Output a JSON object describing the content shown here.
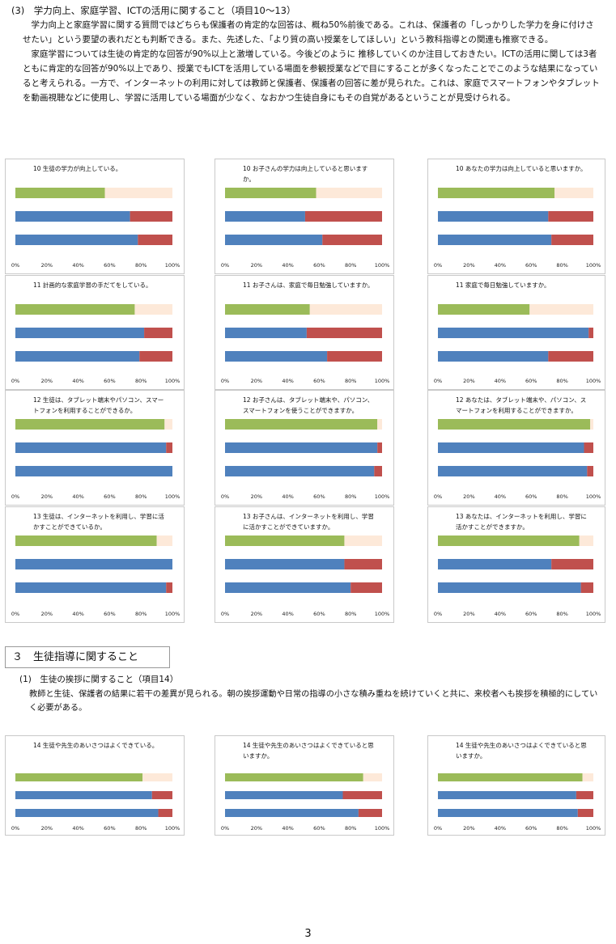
{
  "section3_title": "(3)　学力向上、家庭学習、ICTの活用に関すること（項目10～13）",
  "section3_para1": "学力向上と家庭学習に関する質問ではどちらも保護者の肯定的な回答は、概ね50%前後である。これは、保護者の「しっかりした学力を身に付けさせたい」という要望の表れだとも判断できる。また、先述した、「より質の高い授業をしてほしい」という教科指導との関連も推察できる。",
  "section3_para2": "家庭学習については生徒の肯定的な回答が90%以上と激増している。今後どのように 推移していくのか注目しておきたい。ICTの活用に関しては3者ともに肯定的な回答が90%以上であり、授業でもICTを活用している場面を参観授業などで目にすることが多くなったことでこのような結果になっていると考えられる。一方で、インターネットの利用に対しては教師と保護者、保護者の回答に差が見られた。これは、家庭でスマートフォンやタブレットを動画視聴などに使用し、学習に活用している場面が少なく、なおかつ生徒自身にもその自覚があるということが見受けられる。",
  "heading_box": "３　生徒指導に関すること",
  "sub_heading": "(1)　生徒の挨拶に関すること（項目14）",
  "section_para3": "教師と生徒、保護者の結果に若干の差異が見られる。朝の挨拶運動や日常の指導の小さな積み重ねを続けていくと共に、来校者へも挨拶を積極的にしていく必要がある。",
  "page_number": "3",
  "colors": {
    "green": "#9bbb59",
    "peach": "#fde9d9",
    "blue": "#4f81bd",
    "red": "#c0504d",
    "border": "#c9c9c9"
  },
  "ticks": [
    "0%",
    "20%",
    "40%",
    "60%",
    "80%",
    "100%"
  ],
  "chart_data": [
    {
      "type": "bar",
      "title": "10 生徒の学力が向上している。",
      "xlim": [
        0,
        100
      ],
      "series": [
        {
          "values": [
            57,
            43
          ]
        },
        {
          "values": [
            73,
            27
          ]
        },
        {
          "values": [
            78,
            22
          ]
        }
      ]
    },
    {
      "type": "bar",
      "title": "10 お子さんの学力は向上していると思いますか。",
      "xlim": [
        0,
        100
      ],
      "series": [
        {
          "values": [
            58,
            42
          ]
        },
        {
          "values": [
            51,
            49
          ]
        },
        {
          "values": [
            62,
            38
          ]
        }
      ]
    },
    {
      "type": "bar",
      "title": "10 あなたの学力は向上していると思いますか。",
      "xlim": [
        0,
        100
      ],
      "series": [
        {
          "values": [
            75,
            25
          ]
        },
        {
          "values": [
            71,
            29
          ]
        },
        {
          "values": [
            73,
            27
          ]
        }
      ]
    },
    {
      "type": "bar",
      "title": "11 計画的な家庭学習の手だてをしている。",
      "xlim": [
        0,
        100
      ],
      "series": [
        {
          "values": [
            76,
            24
          ]
        },
        {
          "values": [
            82,
            18
          ]
        },
        {
          "values": [
            79,
            21
          ]
        }
      ]
    },
    {
      "type": "bar",
      "title": "11 お子さんは、家庭で毎日勉強していますか。",
      "xlim": [
        0,
        100
      ],
      "series": [
        {
          "values": [
            54,
            46
          ]
        },
        {
          "values": [
            52,
            48
          ]
        },
        {
          "values": [
            65,
            35
          ]
        }
      ]
    },
    {
      "type": "bar",
      "title": "11 家庭で毎日勉強していますか。",
      "xlim": [
        0,
        100
      ],
      "series": [
        {
          "values": [
            59,
            41
          ]
        },
        {
          "values": [
            97,
            3
          ]
        },
        {
          "values": [
            71,
            29
          ]
        }
      ]
    },
    {
      "type": "bar",
      "title": "12 生徒は、タブレット端末やパソコン、スマートフォンを利用することができるか。",
      "xlim": [
        0,
        100
      ],
      "series": [
        {
          "values": [
            95,
            5
          ]
        },
        {
          "values": [
            96,
            4
          ]
        },
        {
          "values": [
            100,
            0
          ]
        }
      ]
    },
    {
      "type": "bar",
      "title": "12 お子さんは、タブレット端末や、パソコン、スマートフォンを使うことができますか。",
      "xlim": [
        0,
        100
      ],
      "series": [
        {
          "values": [
            97,
            3
          ]
        },
        {
          "values": [
            97,
            3
          ]
        },
        {
          "values": [
            95,
            5
          ]
        }
      ]
    },
    {
      "type": "bar",
      "title": "12 あなたは、タブレット端末や、パソコン、スマートフォンを利用することができますか。",
      "xlim": [
        0,
        100
      ],
      "series": [
        {
          "values": [
            98,
            2
          ]
        },
        {
          "values": [
            94,
            6
          ]
        },
        {
          "values": [
            96,
            4
          ]
        }
      ]
    },
    {
      "type": "bar",
      "title": "13 生徒は、インターネットを利用し、学習に活かすことができているか。",
      "xlim": [
        0,
        100
      ],
      "series": [
        {
          "values": [
            90,
            10
          ]
        },
        {
          "values": [
            100,
            0
          ]
        },
        {
          "values": [
            96,
            4
          ]
        }
      ]
    },
    {
      "type": "bar",
      "title": "13 お子さんは、インターネットを利用し、学習に活かすことができていますか。",
      "xlim": [
        0,
        100
      ],
      "series": [
        {
          "values": [
            76,
            24
          ]
        },
        {
          "values": [
            76,
            24
          ]
        },
        {
          "values": [
            80,
            20
          ]
        }
      ]
    },
    {
      "type": "bar",
      "title": "13 あなたは、インターネットを利用し、学習に活かすことができますか。",
      "xlim": [
        0,
        100
      ],
      "series": [
        {
          "values": [
            91,
            9
          ]
        },
        {
          "values": [
            73,
            27
          ]
        },
        {
          "values": [
            92,
            8
          ]
        }
      ]
    },
    {
      "type": "bar",
      "title": "14 生徒や先生のあいさつはよくできている。",
      "xlim": [
        0,
        100
      ],
      "series": [
        {
          "values": [
            81,
            19
          ]
        },
        {
          "values": [
            87,
            13
          ]
        },
        {
          "values": [
            91,
            9
          ]
        }
      ]
    },
    {
      "type": "bar",
      "title": "14 生徒や先生のあいさつはよくできていると思いますか。",
      "xlim": [
        0,
        100
      ],
      "series": [
        {
          "values": [
            88,
            12
          ]
        },
        {
          "values": [
            75,
            25
          ]
        },
        {
          "values": [
            85,
            15
          ]
        }
      ]
    },
    {
      "type": "bar",
      "title": "14 生徒や先生のあいさつはよくできていると思いますか。",
      "xlim": [
        0,
        100
      ],
      "series": [
        {
          "values": [
            93,
            7
          ]
        },
        {
          "values": [
            89,
            11
          ]
        },
        {
          "values": [
            90,
            10
          ]
        }
      ]
    }
  ]
}
